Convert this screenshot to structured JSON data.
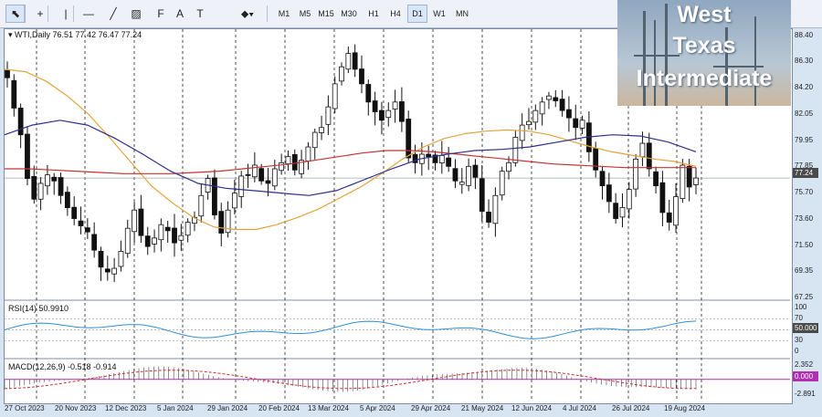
{
  "toolbar": {
    "tools": [
      {
        "name": "cursor-tool",
        "glyph": "⬉"
      },
      {
        "name": "crosshair-tool",
        "glyph": "+"
      },
      {
        "name": "vertical-line-tool",
        "glyph": "|"
      },
      {
        "name": "horizontal-line-tool",
        "glyph": "—"
      },
      {
        "name": "trendline-tool",
        "glyph": "╱"
      },
      {
        "name": "channel-tool",
        "glyph": "▨"
      },
      {
        "name": "fibonacci-tool",
        "glyph": "F"
      },
      {
        "name": "text-tool",
        "glyph": "A"
      },
      {
        "name": "text-label-tool",
        "glyph": "T"
      },
      {
        "name": "shapes-tool",
        "glyph": "⬥▾"
      }
    ],
    "timeframes": [
      "M1",
      "M5",
      "M15",
      "M30",
      "H1",
      "H4",
      "D1",
      "W1",
      "MN"
    ],
    "active_timeframe": "D1"
  },
  "logo": {
    "lines": [
      "West",
      "Texas",
      "Intermediate"
    ]
  },
  "chart": {
    "symbol_header": "WTI,Daily  76.51 77.42 76.47 77.24",
    "current_price": "77.24",
    "price_axis": [
      "88.40",
      "86.30",
      "84.20",
      "82.05",
      "79.95",
      "77.85",
      "75.70",
      "73.60",
      "71.50",
      "69.35",
      "67.25"
    ],
    "dates": [
      "27 Oct 2023",
      "20 Nov 2023",
      "12 Dec 2023",
      "5 Jan 2024",
      "29 Jan 2024",
      "20 Feb 2024",
      "13 Mar 2024",
      "5 Apr 2024",
      "29 Apr 2024",
      "21 May 2024",
      "12 Jun 2024",
      "4 Jul 2024",
      "26 Jul 2024",
      "19 Aug 2024"
    ],
    "rsi": {
      "label": "RSI(14) 50.9910",
      "axis": [
        "100",
        "70",
        "50.000",
        "30",
        "0"
      ],
      "current": "50.000"
    },
    "macd": {
      "label": "MACD(12,26,9) -0.518 -0.914",
      "axis": [
        "2.352",
        "0.000",
        "-2.891"
      ],
      "current": "0.000"
    }
  },
  "chart_data": {
    "type": "candlestick",
    "title": "WTI,Daily",
    "ylim": [
      67.25,
      89.5
    ],
    "x_start": "27 Oct 2023",
    "x_end": "23 Aug 2024",
    "ohlc_last": {
      "open": 76.51,
      "high": 77.42,
      "low": 76.47,
      "close": 77.24
    },
    "close_path": [
      85.5,
      83.0,
      80.8,
      77.2,
      75.5,
      76.8,
      77.5,
      77.0,
      75.8,
      74.8,
      73.9,
      73.3,
      72.8,
      71.3,
      69.9,
      69.5,
      69.8,
      71.2,
      73.1,
      74.6,
      72.5,
      71.6,
      72.3,
      73.4,
      72.9,
      71.9,
      72.5,
      73.6,
      74.0,
      75.8,
      77.2,
      74.2,
      72.7,
      74.6,
      76.0,
      77.4,
      77.5,
      78.3,
      77.0,
      76.8,
      78.0,
      78.5,
      79.0,
      77.9,
      78.7,
      79.8,
      81.0,
      81.4,
      83.1,
      85.0,
      86.4,
      87.5,
      86.2,
      85.0,
      83.5,
      82.7,
      82.0,
      82.8,
      83.5,
      81.9,
      78.9,
      78.5,
      79.2,
      79.0,
      78.5,
      79.1,
      78.2,
      77.0,
      76.9,
      78.2,
      77.3,
      74.5,
      73.6,
      75.8,
      77.8,
      78.5,
      80.6,
      81.6,
      81.9,
      82.8,
      83.5,
      84.0,
      83.6,
      82.8,
      82.2,
      81.4,
      82.0,
      79.4,
      77.9,
      76.6,
      75.3,
      73.9,
      74.8,
      76.3,
      78.8,
      80.1,
      78.0,
      76.6,
      74.4,
      73.6,
      75.7,
      78.3,
      76.5,
      77.24
    ],
    "series": [
      {
        "name": "MA-orange",
        "values": [
          86.2,
          86.0,
          85.2,
          84.0,
          82.5,
          80.6,
          78.6,
          76.6,
          75.2,
          74.0,
          73.2,
          73.0,
          73.0,
          73.4,
          74.0,
          74.7,
          75.6,
          76.5,
          77.6,
          78.8,
          79.8,
          80.5,
          80.9,
          81.1,
          81.2,
          81.1,
          80.8,
          80.3,
          79.8,
          79.4,
          79.1,
          78.8,
          78.6,
          78.2
        ]
      },
      {
        "name": "MA-red",
        "values": [
          78.0,
          78.0,
          77.9,
          77.8,
          77.7,
          77.6,
          77.6,
          77.6,
          77.7,
          77.8,
          78.0,
          78.2,
          78.4,
          78.7,
          79.0,
          79.3,
          79.5,
          79.5,
          79.4,
          79.2,
          79.0,
          78.8,
          78.6,
          78.4,
          78.3,
          78.2,
          78.1,
          78.1,
          78.1,
          78.1
        ]
      },
      {
        "name": "MA-blue",
        "values": [
          80.8,
          81.6,
          82.0,
          81.6,
          80.5,
          79.2,
          77.8,
          76.8,
          76.4,
          76.2,
          76.0,
          75.8,
          76.2,
          77.1,
          78.0,
          78.8,
          79.2,
          79.5,
          79.6,
          79.8,
          80.2,
          80.6,
          80.8,
          80.7,
          80.2,
          79.4
        ]
      }
    ]
  }
}
